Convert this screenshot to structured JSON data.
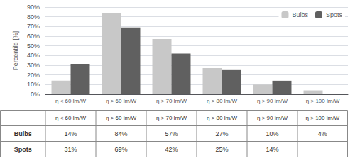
{
  "chart_data": {
    "type": "bar",
    "categories": [
      "η < 60 lm/W",
      "η > 60 lm/W",
      "η > 70 lm/W",
      "η > 80 lm/W",
      "η > 90 lm/W",
      "η > 100 lm/W"
    ],
    "series": [
      {
        "name": "Bulbs",
        "color": "#c8c8c8",
        "values": [
          14,
          84,
          57,
          27,
          10,
          4
        ],
        "value_labels": [
          "14%",
          "84%",
          "57%",
          "27%",
          "10%",
          "4%"
        ]
      },
      {
        "name": "Spots",
        "color": "#606060",
        "values": [
          31,
          69,
          42,
          25,
          14,
          0
        ],
        "value_labels": [
          "31%",
          "69%",
          "42%",
          "25%",
          "14%",
          null
        ]
      }
    ],
    "ylabel": "Percentile [%]",
    "ylim": [
      0,
      90
    ],
    "yticks": [
      {
        "value": 0,
        "label": "0%"
      },
      {
        "value": 10,
        "label": "10%"
      },
      {
        "value": 20,
        "label": "20%"
      },
      {
        "value": 30,
        "label": "30%"
      },
      {
        "value": 40,
        "label": "40%"
      },
      {
        "value": 50,
        "label": "50%"
      },
      {
        "value": 60,
        "label": "60%"
      },
      {
        "value": 70,
        "label": "70%"
      },
      {
        "value": 80,
        "label": "80%"
      },
      {
        "value": 90,
        "label": "90%"
      }
    ],
    "grid": true,
    "legend": "upper right"
  }
}
